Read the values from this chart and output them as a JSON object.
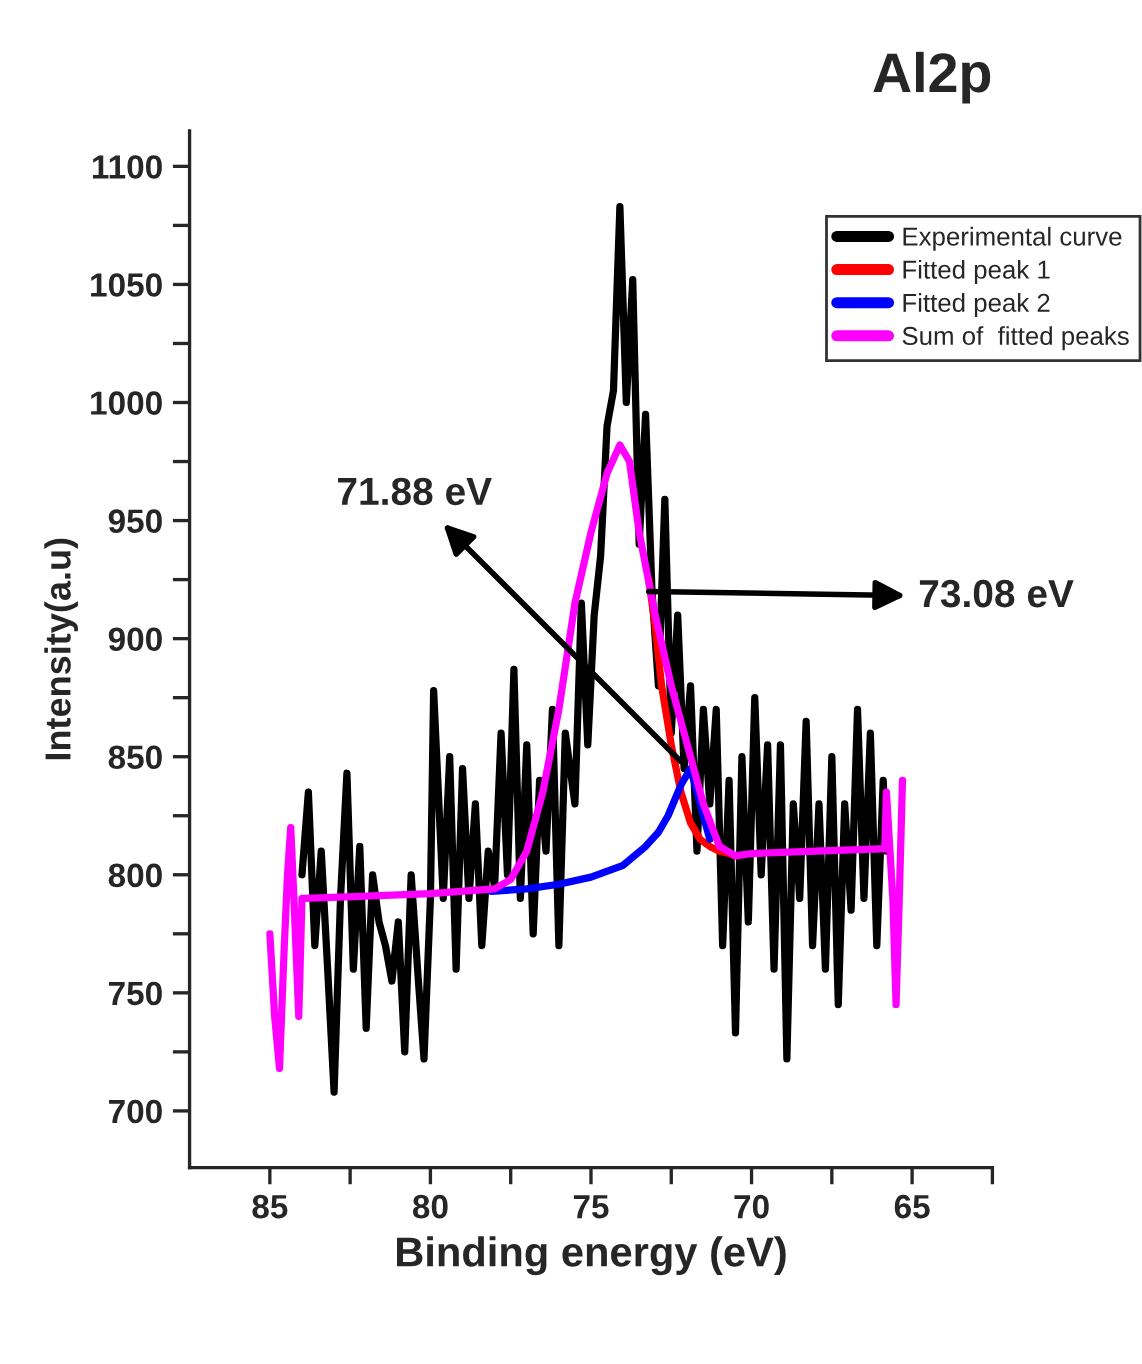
{
  "chart_data": {
    "type": "line",
    "title": "Al2p",
    "xlabel": "Binding energy (eV)",
    "ylabel": "Intensity(a.u)",
    "xlim": [
      87.5,
      62.5
    ],
    "ylim": [
      676,
      1115
    ],
    "xticks": [
      85,
      {
        "value": 82.5,
        "label": null
      },
      80,
      {
        "value": 77.5,
        "label": null
      },
      75,
      {
        "value": 72.5,
        "label": null
      },
      70,
      {
        "value": 67.5,
        "label": null
      },
      65,
      {
        "value": 62.5,
        "label": null
      }
    ],
    "yticks": [
      700,
      {
        "value": 725,
        "label": null
      },
      750,
      {
        "value": 775,
        "label": null
      },
      800,
      {
        "value": 825,
        "label": null
      },
      850,
      {
        "value": 875,
        "label": null
      },
      900,
      {
        "value": 925,
        "label": null
      },
      950,
      {
        "value": 975,
        "label": null
      },
      1000,
      {
        "value": 1025,
        "label": null
      },
      1050,
      {
        "value": 1075,
        "label": null
      },
      1100
    ],
    "grid": false,
    "legend": "top right",
    "marker": "none",
    "line_style": "solid",
    "annotations": [
      {
        "text": "71.88 eV",
        "x": 72.2,
        "y": 848
      },
      {
        "text": "73.08 eV",
        "x": 73.2,
        "y": 920
      }
    ],
    "series": [
      {
        "name": "Experimental curve",
        "color": "#000000",
        "x": [
          84.0,
          83.8,
          83.6,
          83.4,
          83.2,
          83.0,
          82.8,
          82.6,
          82.4,
          82.2,
          82.0,
          81.8,
          81.6,
          81.4,
          81.2,
          81.0,
          80.8,
          80.6,
          80.4,
          80.2,
          80.0,
          79.9,
          79.6,
          79.4,
          79.2,
          79.0,
          78.8,
          78.6,
          78.4,
          78.2,
          78.0,
          77.8,
          77.6,
          77.4,
          77.2,
          77.0,
          76.8,
          76.6,
          76.4,
          76.2,
          76.0,
          75.8,
          75.5,
          75.3,
          75.1,
          74.9,
          74.7,
          74.5,
          74.3,
          74.1,
          73.9,
          73.7,
          73.5,
          73.3,
          73.1,
          72.9,
          72.7,
          72.5,
          72.3,
          72.1,
          71.9,
          71.7,
          71.5,
          71.3,
          71.1,
          70.9,
          70.7,
          70.5,
          70.3,
          70.1,
          69.9,
          69.7,
          69.5,
          69.3,
          69.1,
          68.9,
          68.7,
          68.5,
          68.3,
          68.1,
          67.9,
          67.7,
          67.5,
          67.3,
          67.1,
          66.9,
          66.7,
          66.5,
          66.3,
          66.1,
          65.9,
          65.8
        ],
        "values": [
          800,
          835,
          770,
          810,
          760,
          708,
          790,
          843,
          760,
          812,
          735,
          800,
          780,
          770,
          755,
          780,
          725,
          800,
          760,
          722,
          790,
          878,
          790,
          850,
          760,
          845,
          790,
          830,
          770,
          810,
          795,
          860,
          800,
          887,
          790,
          855,
          775,
          840,
          810,
          870,
          770,
          860,
          830,
          915,
          855,
          910,
          935,
          990,
          1005,
          1083,
          1000,
          1052,
          940,
          995,
          920,
          880,
          959,
          860,
          910,
          845,
          880,
          810,
          870,
          830,
          870,
          770,
          840,
          733,
          850,
          780,
          875,
          800,
          855,
          760,
          855,
          722,
          830,
          790,
          865,
          770,
          830,
          760,
          850,
          745,
          830,
          785,
          870,
          790,
          860,
          770,
          840,
          810
        ]
      },
      {
        "name": "Fitted peak 1",
        "color": "#ff0000",
        "x": [
          73.2,
          73.0,
          72.8,
          72.5,
          72.2,
          71.9,
          71.6,
          71.3,
          71.0,
          70.7,
          70.5
        ],
        "values": [
          925,
          905,
          880,
          855,
          835,
          822,
          815,
          812,
          810,
          809,
          808
        ]
      },
      {
        "name": "Fitted peak 2",
        "color": "#0000ff",
        "x": [
          78.1,
          77.0,
          76.0,
          75.0,
          74.0,
          73.3,
          72.9,
          72.6,
          72.2,
          71.9,
          71.6,
          71.3
        ],
        "values": [
          793,
          794,
          796,
          799,
          804,
          812,
          818,
          825,
          838,
          845,
          830,
          815
        ]
      },
      {
        "name": "Sum of  fitted peaks",
        "color": "#ff00ff",
        "x": [
          85.0,
          84.85,
          84.7,
          84.55,
          84.45,
          84.35,
          84.25,
          84.1,
          84.0,
          83.9,
          82.0,
          80.0,
          78.0,
          77.5,
          77.0,
          76.5,
          76.0,
          75.5,
          75.0,
          74.5,
          74.1,
          73.8,
          73.5,
          73.0,
          72.5,
          72.0,
          71.5,
          71.0,
          70.5,
          70.0,
          68.0,
          66.0,
          65.85,
          65.8,
          65.6,
          65.5,
          65.4,
          65.3
        ],
        "values": [
          775,
          740,
          718,
          770,
          800,
          820,
          790,
          740,
          790,
          790,
          791,
          792,
          794,
          798,
          810,
          835,
          870,
          915,
          945,
          970,
          982,
          975,
          945,
          910,
          880,
          855,
          830,
          812,
          808,
          809,
          810,
          811,
          811,
          835,
          790,
          745,
          790,
          840
        ]
      }
    ]
  }
}
